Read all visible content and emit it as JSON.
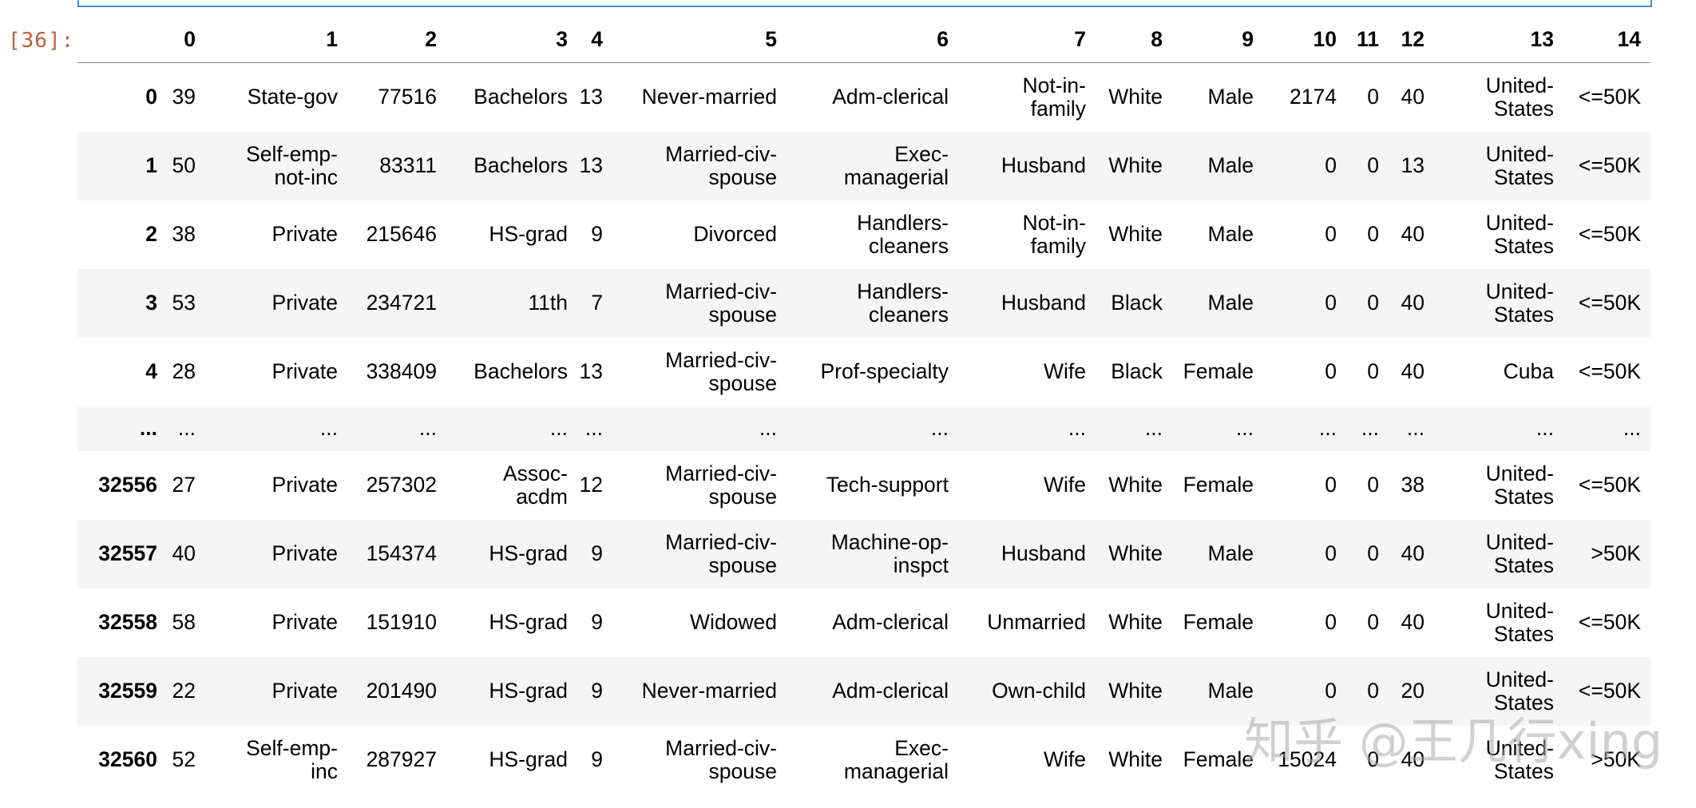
{
  "cell": {
    "prompt": "[36]:"
  },
  "dataframe": {
    "columns": [
      "",
      "0",
      "1",
      "2",
      "3",
      "4",
      "5",
      "6",
      "7",
      "8",
      "9",
      "10",
      "11",
      "12",
      "13",
      "14"
    ],
    "rows": [
      {
        "index": "0",
        "cells": [
          "39",
          "State-gov",
          "77516",
          "Bachelors",
          "13",
          "Never-married",
          "Adm-clerical",
          "Not-in-\nfamily",
          "White",
          "Male",
          "2174",
          "0",
          "40",
          "United-\nStates",
          "<=50K"
        ]
      },
      {
        "index": "1",
        "cells": [
          "50",
          "Self-emp-\nnot-inc",
          "83311",
          "Bachelors",
          "13",
          "Married-civ-\nspouse",
          "Exec-\nmanagerial",
          "Husband",
          "White",
          "Male",
          "0",
          "0",
          "13",
          "United-\nStates",
          "<=50K"
        ]
      },
      {
        "index": "2",
        "cells": [
          "38",
          "Private",
          "215646",
          "HS-grad",
          "9",
          "Divorced",
          "Handlers-\ncleaners",
          "Not-in-\nfamily",
          "White",
          "Male",
          "0",
          "0",
          "40",
          "United-\nStates",
          "<=50K"
        ]
      },
      {
        "index": "3",
        "cells": [
          "53",
          "Private",
          "234721",
          "11th",
          "7",
          "Married-civ-\nspouse",
          "Handlers-\ncleaners",
          "Husband",
          "Black",
          "Male",
          "0",
          "0",
          "40",
          "United-\nStates",
          "<=50K"
        ]
      },
      {
        "index": "4",
        "cells": [
          "28",
          "Private",
          "338409",
          "Bachelors",
          "13",
          "Married-civ-\nspouse",
          "Prof-specialty",
          "Wife",
          "Black",
          "Female",
          "0",
          "0",
          "40",
          "Cuba",
          "<=50K"
        ]
      },
      {
        "index": "...",
        "cells": [
          "...",
          "...",
          "...",
          "...",
          "...",
          "...",
          "...",
          "...",
          "...",
          "...",
          "...",
          "...",
          "...",
          "...",
          "..."
        ]
      },
      {
        "index": "32556",
        "cells": [
          "27",
          "Private",
          "257302",
          "Assoc-\nacdm",
          "12",
          "Married-civ-\nspouse",
          "Tech-support",
          "Wife",
          "White",
          "Female",
          "0",
          "0",
          "38",
          "United-\nStates",
          "<=50K"
        ]
      },
      {
        "index": "32557",
        "cells": [
          "40",
          "Private",
          "154374",
          "HS-grad",
          "9",
          "Married-civ-\nspouse",
          "Machine-op-\ninspct",
          "Husband",
          "White",
          "Male",
          "0",
          "0",
          "40",
          "United-\nStates",
          ">50K"
        ]
      },
      {
        "index": "32558",
        "cells": [
          "58",
          "Private",
          "151910",
          "HS-grad",
          "9",
          "Widowed",
          "Adm-clerical",
          "Unmarried",
          "White",
          "Female",
          "0",
          "0",
          "40",
          "United-\nStates",
          "<=50K"
        ]
      },
      {
        "index": "32559",
        "cells": [
          "22",
          "Private",
          "201490",
          "HS-grad",
          "9",
          "Never-married",
          "Adm-clerical",
          "Own-child",
          "White",
          "Male",
          "0",
          "0",
          "20",
          "United-\nStates",
          "<=50K"
        ]
      },
      {
        "index": "32560",
        "cells": [
          "52",
          "Self-emp-\ninc",
          "287927",
          "HS-grad",
          "9",
          "Married-civ-\nspouse",
          "Exec-\nmanagerial",
          "Wife",
          "White",
          "Female",
          "15024",
          "0",
          "40",
          "United-\nStates",
          ">50K"
        ]
      }
    ]
  },
  "watermark": {
    "text": "知乎 @王几行xing"
  },
  "colors": {
    "prompt": "#bf5b3d",
    "cell_border": "#4a8fc8",
    "stripe": "#f5f5f5"
  }
}
